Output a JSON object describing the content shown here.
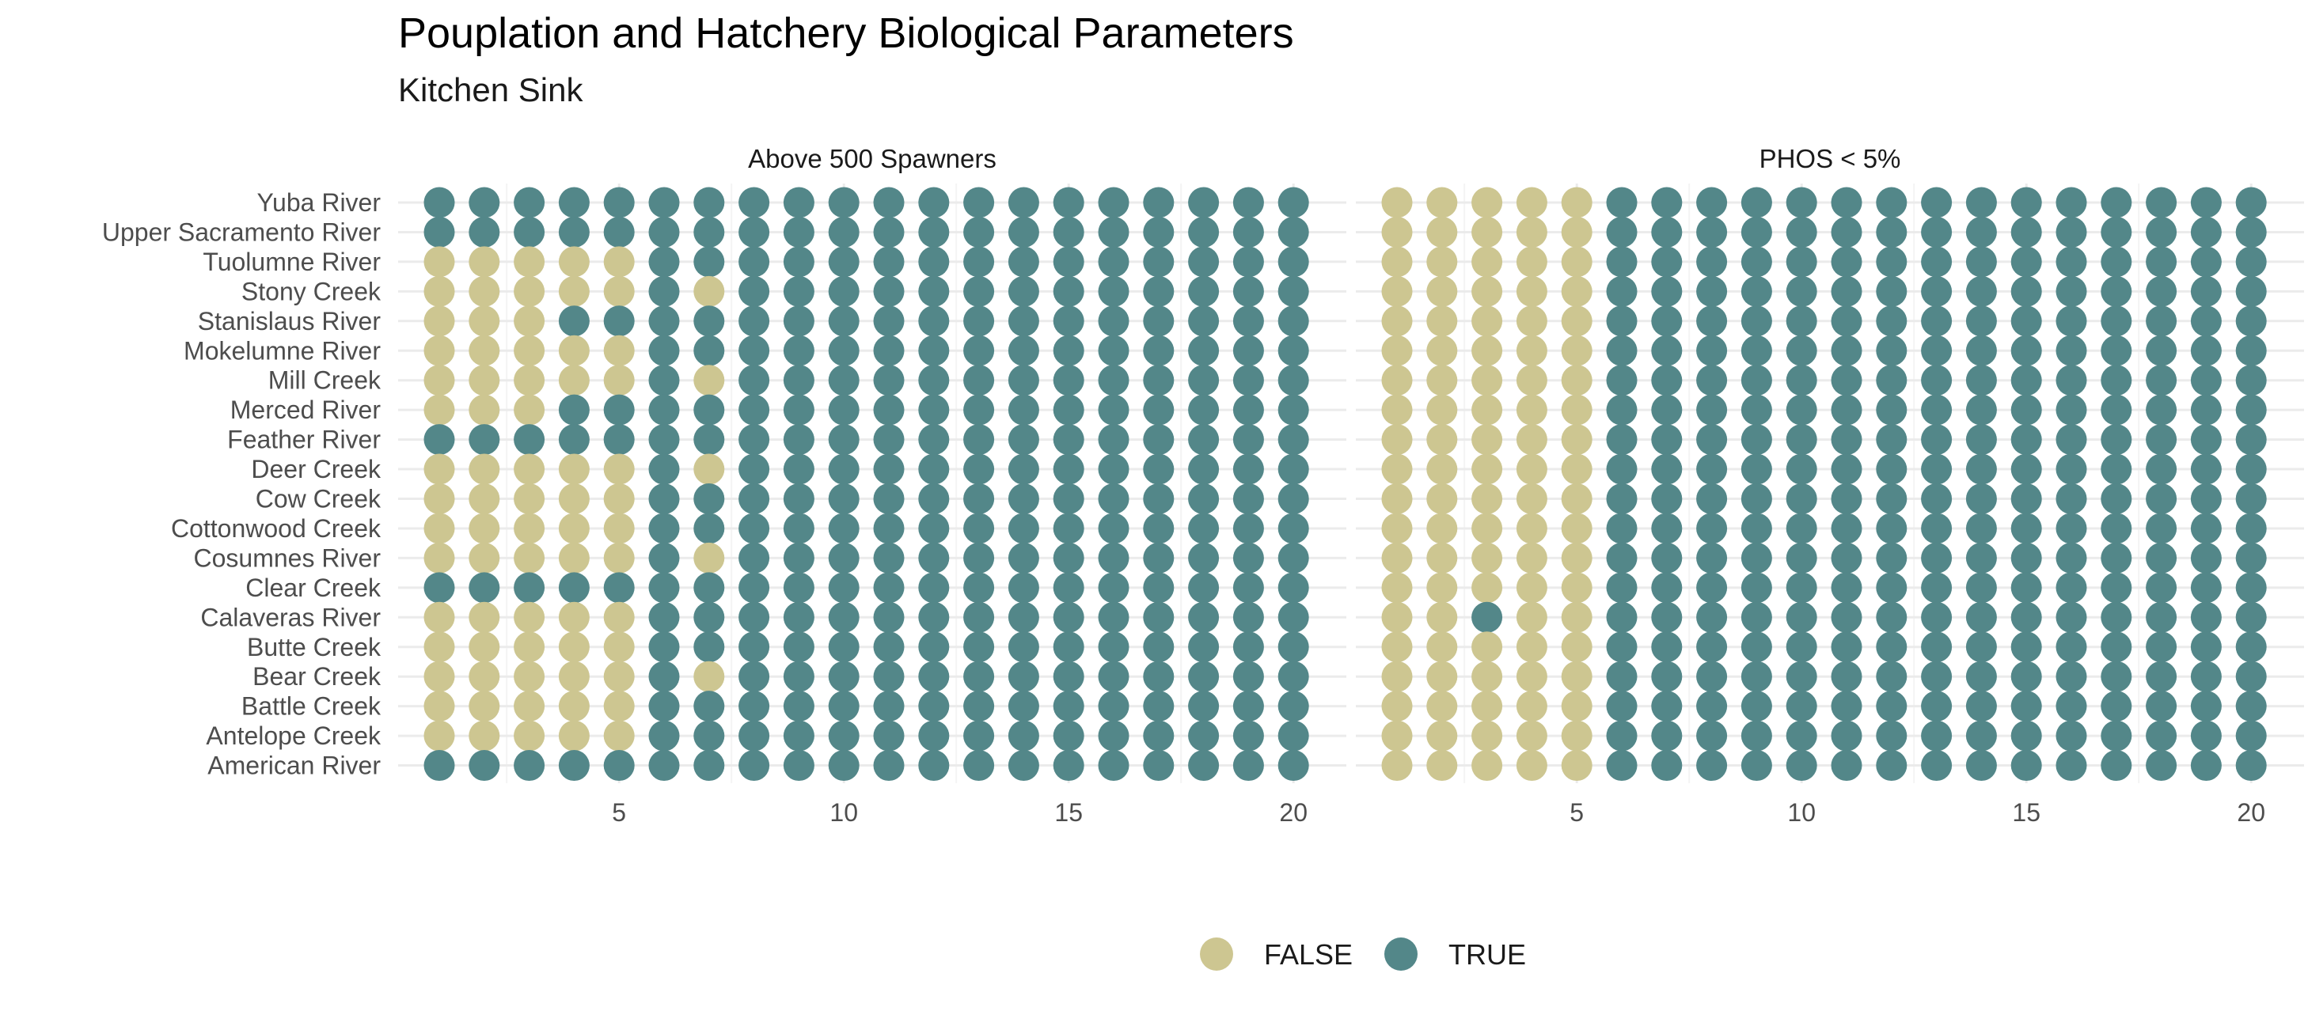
{
  "chart_data": {
    "type": "dot-matrix",
    "title": "Pouplation and Hatchery Biological Parameters",
    "subtitle": "Kitchen Sink",
    "xlim": [
      1,
      20
    ],
    "x_ticks": [
      5,
      10,
      15,
      20
    ],
    "rows": [
      "Yuba River",
      "Upper Sacramento River",
      "Tuolumne River",
      "Stony Creek",
      "Stanislaus River",
      "Mokelumne River",
      "Mill Creek",
      "Merced River",
      "Feather River",
      "Deer Creek",
      "Cow Creek",
      "Cottonwood Creek",
      "Cosumnes River",
      "Clear Creek",
      "Calaveras River",
      "Butte Creek",
      "Bear Creek",
      "Battle Creek",
      "Antelope Creek",
      "American River"
    ],
    "colors": {
      "FALSE": "#cdc691",
      "TRUE": "#538789"
    },
    "legend": {
      "position": "bottom",
      "items": [
        "FALSE",
        "TRUE"
      ]
    },
    "panels": [
      {
        "title": "Above 500 Spawners",
        "values": {
          "Yuba River": "11111111111111111111",
          "Upper Sacramento River": "11111111111111111111",
          "Tuolumne River": "00000111111111111111",
          "Stony Creek": "00000101111111111111",
          "Stanislaus River": "00011111111111111111",
          "Mokelumne River": "00000111111111111111",
          "Mill Creek": "00000101111111111111",
          "Merced River": "00011111111111111111",
          "Feather River": "11111111111111111111",
          "Deer Creek": "00000101111111111111",
          "Cow Creek": "00000111111111111111",
          "Cottonwood Creek": "00000111111111111111",
          "Cosumnes River": "00000101111111111111",
          "Clear Creek": "11111111111111111111",
          "Calaveras River": "00000111111111111111",
          "Butte Creek": "00000111111111111111",
          "Bear Creek": "00000101111111111111",
          "Battle Creek": "00000111111111111111",
          "Antelope Creek": "00000111111111111111",
          "American River": "11111111111111111111"
        }
      },
      {
        "title": "PHOS < 5%",
        "values": {
          "Yuba River": "00000111111111111111",
          "Upper Sacramento River": "00000111111111111111",
          "Tuolumne River": "00000111111111111111",
          "Stony Creek": "00000111111111111111",
          "Stanislaus River": "00000111111111111111",
          "Mokelumne River": "00000111111111111111",
          "Mill Creek": "00000111111111111111",
          "Merced River": "00000111111111111111",
          "Feather River": "00000111111111111111",
          "Deer Creek": "00000111111111111111",
          "Cow Creek": "00000111111111111111",
          "Cottonwood Creek": "00000111111111111111",
          "Cosumnes River": "00000111111111111111",
          "Clear Creek": "00000111111111111111",
          "Calaveras River": "00100111111111111111",
          "Butte Creek": "00000111111111111111",
          "Bear Creek": "00000111111111111111",
          "Battle Creek": "00000111111111111111",
          "Antelope Creek": "00000111111111111111",
          "American River": "00000111111111111111"
        }
      }
    ]
  }
}
